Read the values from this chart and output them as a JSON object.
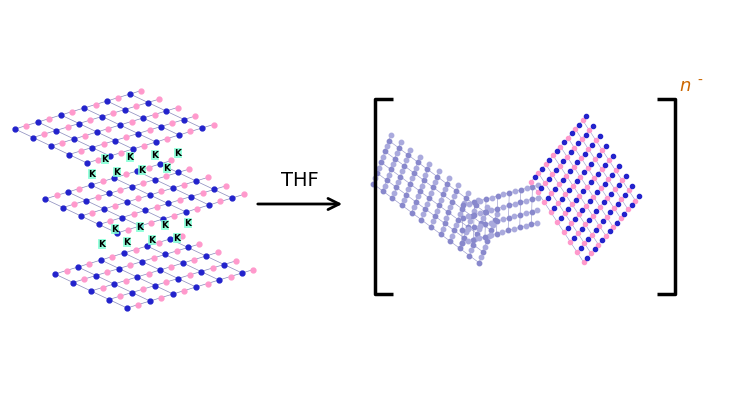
{
  "bg_color": "#ffffff",
  "arrow_color": "#000000",
  "thf_label": "THF",
  "thf_fontsize": 14,
  "K_label": "K",
  "K_color": "#000000",
  "K_bg_color": "#7fffd4",
  "n_minus_label": "n",
  "n_minus_sup": "-",
  "n_minus_color": "#cc6600",
  "bracket_color": "#000000",
  "hbn_blue": "#2222cc",
  "hbn_pink": "#ff99cc",
  "hbn_purple": "#8888cc",
  "hbn_light_purple": "#aaaadd"
}
